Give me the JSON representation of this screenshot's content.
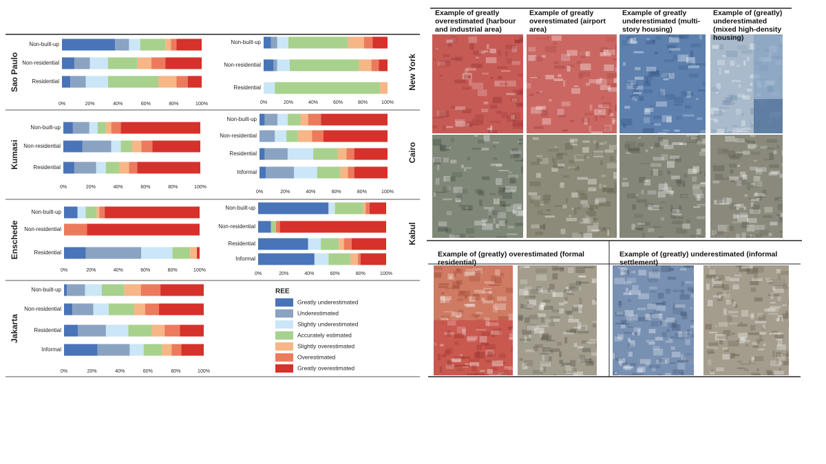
{
  "chart_data": [
    {
      "type": "bar",
      "orientation": "horizontal",
      "stacked": true,
      "title": "Sao Paulo",
      "categories": [
        "Non-built-up",
        "Non-residential",
        "Residential"
      ],
      "series": [
        {
          "values": [
            38,
            9,
            6
          ]
        },
        {
          "values": [
            10,
            11,
            11
          ]
        },
        {
          "values": [
            8,
            13,
            16
          ]
        },
        {
          "values": [
            18,
            21,
            36
          ]
        },
        {
          "values": [
            4,
            10,
            13
          ]
        },
        {
          "values": [
            4,
            10,
            8
          ]
        },
        {
          "values": [
            18,
            26,
            10
          ]
        }
      ],
      "xlim": [
        0,
        100
      ],
      "xticks": [
        {
          "value": 0,
          "label": "0%"
        },
        {
          "value": 20,
          "label": "20%"
        },
        {
          "value": 40,
          "label": "40%"
        },
        {
          "value": 60,
          "label": "60%"
        },
        {
          "value": 80,
          "label": "80%"
        },
        {
          "value": 100,
          "label": "100%"
        }
      ]
    },
    {
      "type": "bar",
      "orientation": "horizontal",
      "stacked": true,
      "categories": [
        "Non-built-up",
        "Non-residential",
        "Residential"
      ],
      "series": [
        {
          "values": [
            6,
            8,
            0
          ]
        },
        {
          "values": [
            5,
            3,
            0
          ]
        },
        {
          "values": [
            9,
            10,
            9
          ]
        },
        {
          "values": [
            48,
            56,
            85
          ]
        },
        {
          "values": [
            13,
            10,
            6
          ]
        },
        {
          "values": [
            7,
            6,
            0
          ]
        },
        {
          "values": [
            12,
            7,
            0
          ]
        }
      ],
      "xlim": [
        0,
        100
      ],
      "xticks": [
        {
          "value": 0,
          "label": "0%"
        },
        {
          "value": 20,
          "label": "20%"
        },
        {
          "value": 40,
          "label": "40%"
        },
        {
          "value": 60,
          "label": "60%"
        },
        {
          "value": 80,
          "label": "80%"
        },
        {
          "value": 100,
          "label": "100%"
        }
      ]
    },
    {
      "type": "bar",
      "orientation": "horizontal",
      "stacked": true,
      "title": "Kumasi",
      "categories": [
        "Non-built-up",
        "Non-residential",
        "Residential"
      ],
      "series": [
        {
          "values": [
            7,
            14,
            8
          ]
        },
        {
          "values": [
            12,
            21,
            16
          ]
        },
        {
          "values": [
            6,
            7,
            7
          ]
        },
        {
          "values": [
            6,
            8,
            10
          ]
        },
        {
          "values": [
            4,
            7,
            7
          ]
        },
        {
          "values": [
            7,
            8,
            6
          ]
        },
        {
          "values": [
            58,
            35,
            46
          ]
        }
      ],
      "xlim": [
        0,
        100
      ],
      "xticks": [
        {
          "value": 0,
          "label": "0%"
        },
        {
          "value": 20,
          "label": "20%"
        },
        {
          "value": 40,
          "label": "40%"
        },
        {
          "value": 60,
          "label": "60%"
        },
        {
          "value": 80,
          "label": "80%"
        },
        {
          "value": 100,
          "label": "100%"
        }
      ]
    },
    {
      "type": "bar",
      "orientation": "horizontal",
      "stacked": true,
      "categories": [
        "Non-built-up",
        "Non-residential",
        "Residential",
        "Informal"
      ],
      "series": [
        {
          "values": [
            4,
            0,
            4,
            5
          ]
        },
        {
          "values": [
            10,
            12,
            18,
            22
          ]
        },
        {
          "values": [
            8,
            9,
            20,
            18
          ]
        },
        {
          "values": [
            10,
            9,
            19,
            18
          ]
        },
        {
          "values": [
            6,
            11,
            7,
            6
          ]
        },
        {
          "values": [
            10,
            9,
            6,
            5
          ]
        },
        {
          "values": [
            52,
            50,
            26,
            26
          ]
        }
      ],
      "xlim": [
        0,
        100
      ],
      "xticks": [
        {
          "value": 0,
          "label": "0%"
        },
        {
          "value": 20,
          "label": "20%"
        },
        {
          "value": 40,
          "label": "40%"
        },
        {
          "value": 60,
          "label": "60%"
        },
        {
          "value": 80,
          "label": "80%"
        },
        {
          "value": 100,
          "label": "100%"
        }
      ]
    },
    {
      "type": "bar",
      "orientation": "horizontal",
      "stacked": true,
      "title": "Enschede",
      "categories": [
        "Non-built-up",
        "Non-residential",
        "Residential"
      ],
      "series": [
        {
          "values": [
            10,
            0,
            16
          ]
        },
        {
          "values": [
            0,
            0,
            41
          ]
        },
        {
          "values": [
            6,
            0,
            23
          ]
        },
        {
          "values": [
            8,
            0,
            13
          ]
        },
        {
          "values": [
            2,
            0,
            5
          ]
        },
        {
          "values": [
            4,
            17,
            0
          ]
        },
        {
          "values": [
            70,
            83,
            2
          ]
        }
      ],
      "xlim": [
        0,
        100
      ],
      "xticks": [
        {
          "value": 0,
          "label": "0%"
        },
        {
          "value": 20,
          "label": "20%"
        },
        {
          "value": 40,
          "label": "40%"
        },
        {
          "value": 60,
          "label": "60%"
        },
        {
          "value": 80,
          "label": "80%"
        },
        {
          "value": 100,
          "label": "100%"
        }
      ]
    },
    {
      "type": "bar",
      "orientation": "horizontal",
      "stacked": true,
      "categories": [
        "Non-built-up",
        "Non-residential",
        "Residential",
        "Informal"
      ],
      "series": [
        {
          "values": [
            55,
            10,
            39,
            44
          ]
        },
        {
          "values": [
            0,
            0,
            0,
            0
          ]
        },
        {
          "values": [
            5,
            0,
            10,
            11
          ]
        },
        {
          "values": [
            22,
            4,
            14,
            17
          ]
        },
        {
          "values": [
            2,
            0,
            4,
            6
          ]
        },
        {
          "values": [
            3,
            3,
            6,
            2
          ]
        },
        {
          "values": [
            13,
            83,
            27,
            20
          ]
        }
      ],
      "xlim": [
        0,
        100
      ],
      "xticks": [
        {
          "value": 0,
          "label": "0%"
        },
        {
          "value": 20,
          "label": "20%"
        },
        {
          "value": 40,
          "label": "40%"
        },
        {
          "value": 60,
          "label": "60%"
        },
        {
          "value": 80,
          "label": "80%"
        },
        {
          "value": 100,
          "label": "100%"
        }
      ]
    },
    {
      "type": "bar",
      "orientation": "horizontal",
      "stacked": true,
      "title": "Jakarta",
      "categories": [
        "Non-built-up",
        "Non-residential",
        "Residential",
        "Informal"
      ],
      "series": [
        {
          "values": [
            2,
            6,
            10,
            24
          ]
        },
        {
          "values": [
            13,
            15,
            20,
            23
          ]
        },
        {
          "values": [
            12,
            11,
            16,
            10
          ]
        },
        {
          "values": [
            16,
            18,
            17,
            13
          ]
        },
        {
          "values": [
            12,
            8,
            9,
            7
          ]
        },
        {
          "values": [
            14,
            10,
            11,
            7
          ]
        },
        {
          "values": [
            31,
            32,
            17,
            16
          ]
        }
      ],
      "xlim": [
        0,
        100
      ],
      "xticks": [
        {
          "value": 0,
          "label": "0%"
        },
        {
          "value": 20,
          "label": "20%"
        },
        {
          "value": 40,
          "label": "40%"
        },
        {
          "value": 60,
          "label": "60%"
        },
        {
          "value": 80,
          "label": "80%"
        },
        {
          "value": 100,
          "label": "100%"
        }
      ]
    }
  ],
  "legend": {
    "title": "REE",
    "items": [
      {
        "name": "Greatly underestimated",
        "color": "#4a74b8"
      },
      {
        "name": "Underestimated",
        "color": "#8aa3c2"
      },
      {
        "name": "Slightly underestimated",
        "color": "#cbe6f6"
      },
      {
        "name": "Accurately estimated",
        "color": "#a8d18d"
      },
      {
        "name": "Slightly overestimated",
        "color": "#f6b686"
      },
      {
        "name": "Overestimated",
        "color": "#ec7a5c"
      },
      {
        "name": "Greatly overestimated",
        "color": "#d6312b"
      }
    ]
  },
  "image_panels": {
    "top_headers": [
      "Example of greatly overestimated (harbour and industrial area)",
      "Example of greatly overestimated (airport area)",
      "Example of greatly underestimated (multi-story housing)",
      "Example of (greatly) underestimated (mixed high-density housing)"
    ],
    "bottom_headers": [
      "Example of (greatly) overestimated (formal residential)",
      "Example of (greatly) underestimated (informal settlement)"
    ],
    "row_labels": [
      "New York",
      "Cairo",
      "Kabul"
    ]
  }
}
